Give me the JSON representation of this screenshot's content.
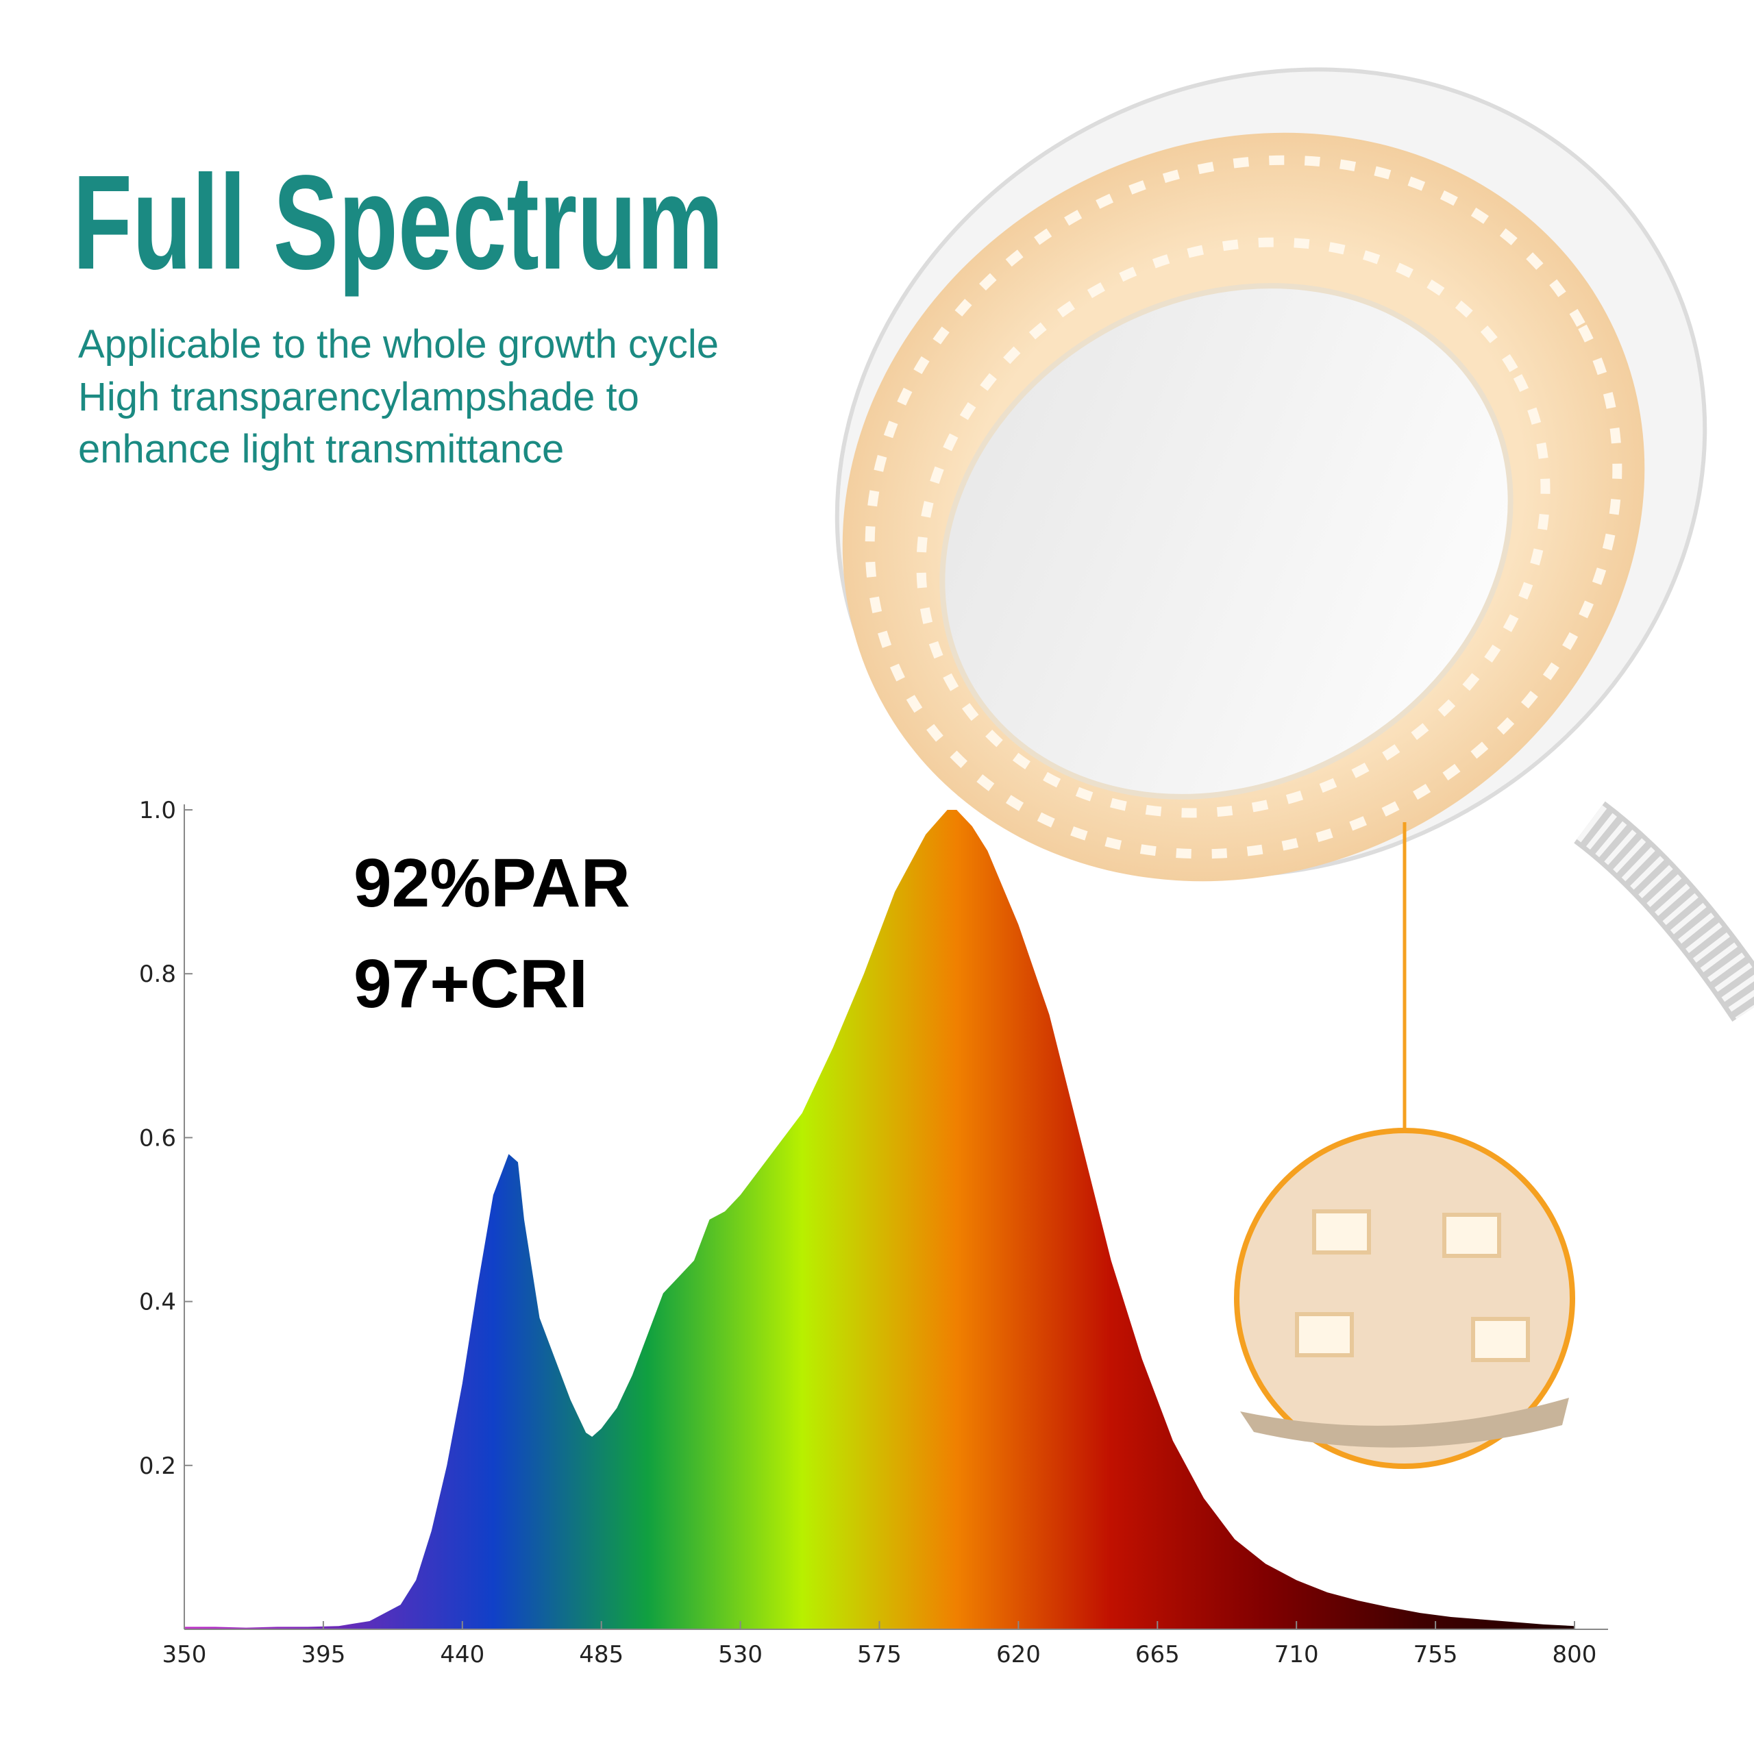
{
  "chart_data": {
    "type": "area",
    "title": "Full Spectrum",
    "subtitle": [
      "Applicable to the whole growth cycle",
      "High transparencylampshade to",
      "enhance light transmittance"
    ],
    "annotations": [
      "92%PAR",
      "97+CRI"
    ],
    "x": [
      350,
      360,
      370,
      380,
      390,
      400,
      410,
      420,
      425,
      430,
      435,
      440,
      445,
      450,
      455,
      458,
      460,
      465,
      470,
      475,
      480,
      482,
      485,
      490,
      495,
      500,
      505,
      510,
      515,
      520,
      525,
      530,
      540,
      550,
      560,
      570,
      580,
      590,
      597,
      600,
      605,
      610,
      620,
      630,
      640,
      650,
      660,
      670,
      680,
      690,
      700,
      710,
      720,
      730,
      740,
      750,
      760,
      770,
      780,
      790,
      800
    ],
    "values": [
      0.003,
      0.003,
      0.002,
      0.003,
      0.003,
      0.004,
      0.01,
      0.03,
      0.06,
      0.12,
      0.2,
      0.3,
      0.42,
      0.53,
      0.58,
      0.57,
      0.5,
      0.38,
      0.33,
      0.28,
      0.24,
      0.235,
      0.245,
      0.27,
      0.31,
      0.36,
      0.41,
      0.43,
      0.45,
      0.5,
      0.51,
      0.53,
      0.58,
      0.63,
      0.71,
      0.8,
      0.9,
      0.97,
      1.0,
      1.0,
      0.98,
      0.95,
      0.86,
      0.75,
      0.6,
      0.45,
      0.33,
      0.23,
      0.16,
      0.11,
      0.08,
      0.06,
      0.045,
      0.035,
      0.027,
      0.02,
      0.015,
      0.012,
      0.009,
      0.006,
      0.004
    ],
    "colors": [
      "#c030c8",
      "#6a2ab8",
      "#1040c8",
      "#10a040",
      "#b8f000",
      "#f08000",
      "#c01000",
      "#800000",
      "#400000",
      "#200000"
    ],
    "xlim": [
      350,
      800
    ],
    "ylim": [
      0,
      1
    ],
    "xticks": [
      350,
      395,
      440,
      485,
      530,
      575,
      620,
      665,
      710,
      755,
      800
    ],
    "yticks": [
      0.2,
      0.4,
      0.6,
      0.8,
      {
        "value": 1,
        "label": "1.0"
      }
    ]
  }
}
